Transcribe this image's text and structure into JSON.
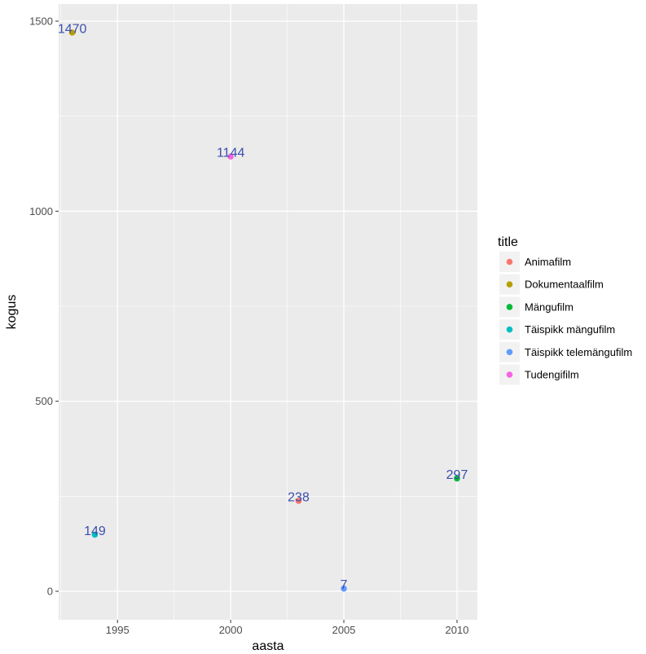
{
  "chart_data": {
    "type": "scatter",
    "xlabel": "aasta",
    "ylabel": "kogus",
    "xlim": [
      1992.4,
      2010.9
    ],
    "ylim": [
      -75,
      1545
    ],
    "x_ticks": [
      1995,
      2000,
      2005,
      2010
    ],
    "y_ticks": [
      0,
      500,
      1000,
      1500
    ],
    "grid": true,
    "legend": {
      "title": "title",
      "position": "right",
      "entries": [
        {
          "name": "Animafilm",
          "color": "#F8766D"
        },
        {
          "name": "Dokumentaalfilm",
          "color": "#B79F00"
        },
        {
          "name": "Mängufilm",
          "color": "#00BA38"
        },
        {
          "name": "Täispikk mängufilm",
          "color": "#00BFC4"
        },
        {
          "name": "Täispikk telemängufilm",
          "color": "#619CFF"
        },
        {
          "name": "Tudengifilm",
          "color": "#F564E3"
        }
      ]
    },
    "points": [
      {
        "series": "Dokumentaalfilm",
        "x": 1993,
        "y": 1470,
        "label": "1470"
      },
      {
        "series": "Tudengifilm",
        "x": 2000,
        "y": 1144,
        "label": "1144"
      },
      {
        "series": "Mängufilm",
        "x": 2010,
        "y": 297,
        "label": "297"
      },
      {
        "series": "Animafilm",
        "x": 2003,
        "y": 238,
        "label": "238"
      },
      {
        "series": "Täispikk mängufilm",
        "x": 1994,
        "y": 149,
        "label": "149"
      },
      {
        "series": "Täispikk telemängufilm",
        "x": 2005,
        "y": 7,
        "label": "7"
      }
    ]
  }
}
